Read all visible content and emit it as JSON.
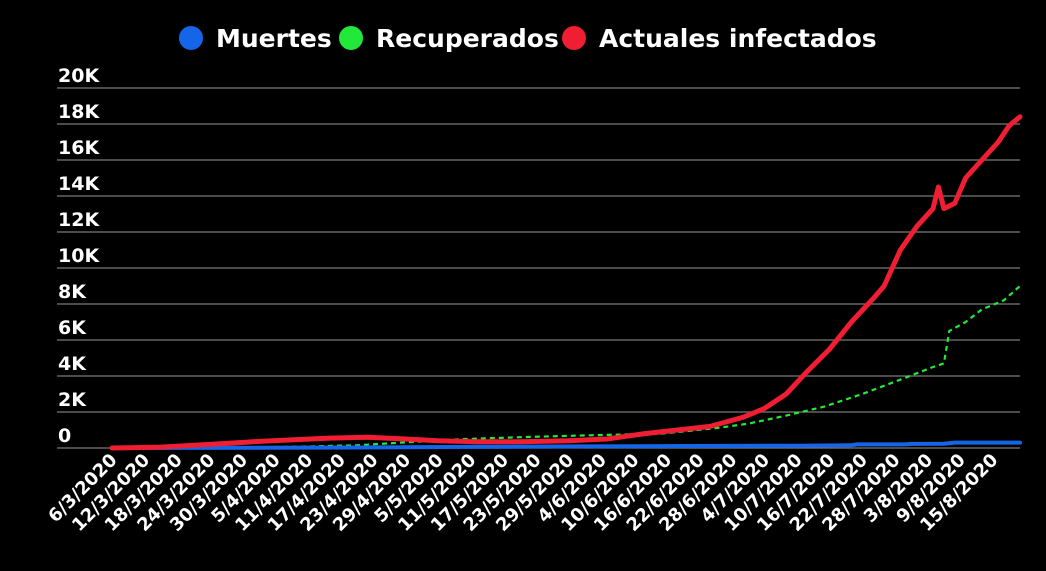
{
  "chart_data": {
    "type": "line",
    "title": "",
    "xlabel": "",
    "ylabel": "",
    "ylim": [
      0,
      20000
    ],
    "yticks": [
      0,
      2000,
      4000,
      6000,
      8000,
      10000,
      12000,
      14000,
      16000,
      18000,
      20000
    ],
    "ytick_labels": [
      "0",
      "2K",
      "4K",
      "6K",
      "8K",
      "10K",
      "12K",
      "14K",
      "16K",
      "18K",
      "20K"
    ],
    "x_start": "6/3/2020",
    "x_end": "20/8/2020",
    "xtick_labels": [
      "6/3/2020",
      "12/3/2020",
      "18/3/2020",
      "24/3/2020",
      "30/3/2020",
      "5/4/2020",
      "11/4/2020",
      "17/4/2020",
      "23/4/2020",
      "29/4/2020",
      "5/5/2020",
      "11/5/2020",
      "17/5/2020",
      "23/5/2020",
      "29/5/2020",
      "4/6/2020",
      "10/6/2020",
      "16/6/2020",
      "22/6/2020",
      "28/6/2020",
      "4/7/2020",
      "10/7/2020",
      "16/7/2020",
      "22/7/2020",
      "28/7/2020",
      "3/8/2020",
      "9/8/2020",
      "15/8/2020"
    ],
    "grid": true,
    "legend_position": "top-center",
    "series": [
      {
        "name": "Muertes",
        "color": "#1565e8",
        "style": "solid",
        "points": [
          [
            "6/3/2020",
            0
          ],
          [
            "1/4/2020",
            10
          ],
          [
            "20/4/2020",
            30
          ],
          [
            "10/5/2020",
            60
          ],
          [
            "1/6/2020",
            90
          ],
          [
            "20/6/2020",
            110
          ],
          [
            "10/7/2020",
            130
          ],
          [
            "20/7/2020",
            150
          ],
          [
            "21/7/2020",
            200
          ],
          [
            "30/7/2020",
            200
          ],
          [
            "31/7/2020",
            230
          ],
          [
            "6/8/2020",
            240
          ],
          [
            "8/8/2020",
            300
          ],
          [
            "20/8/2020",
            300
          ]
        ]
      },
      {
        "name": "Recuperados",
        "color": "#22e83a",
        "style": "dashed",
        "points": [
          [
            "6/3/2020",
            0
          ],
          [
            "20/3/2020",
            10
          ],
          [
            "1/4/2020",
            40
          ],
          [
            "10/4/2020",
            80
          ],
          [
            "20/4/2020",
            150
          ],
          [
            "1/5/2020",
            350
          ],
          [
            "10/5/2020",
            500
          ],
          [
            "20/5/2020",
            600
          ],
          [
            "1/6/2020",
            700
          ],
          [
            "15/6/2020",
            800
          ],
          [
            "25/6/2020",
            1100
          ],
          [
            "1/7/2020",
            1350
          ],
          [
            "8/7/2020",
            1800
          ],
          [
            "15/7/2020",
            2300
          ],
          [
            "22/7/2020",
            3000
          ],
          [
            "29/7/2020",
            3800
          ],
          [
            "4/8/2020",
            4500
          ],
          [
            "6/8/2020",
            4700
          ],
          [
            "7/8/2020",
            6500
          ],
          [
            "10/8/2020",
            7000
          ],
          [
            "13/8/2020",
            7700
          ],
          [
            "17/8/2020",
            8200
          ],
          [
            "20/8/2020",
            9000
          ]
        ]
      },
      {
        "name": "Actuales infectados",
        "color": "#f01e32",
        "style": "solid",
        "points": [
          [
            "6/3/2020",
            0
          ],
          [
            "15/3/2020",
            50
          ],
          [
            "24/3/2020",
            200
          ],
          [
            "1/4/2020",
            350
          ],
          [
            "8/4/2020",
            450
          ],
          [
            "15/4/2020",
            550
          ],
          [
            "22/4/2020",
            600
          ],
          [
            "29/4/2020",
            500
          ],
          [
            "5/5/2020",
            400
          ],
          [
            "12/5/2020",
            350
          ],
          [
            "20/5/2020",
            350
          ],
          [
            "29/5/2020",
            400
          ],
          [
            "5/6/2020",
            500
          ],
          [
            "12/6/2020",
            800
          ],
          [
            "18/6/2020",
            1000
          ],
          [
            "24/6/2020",
            1200
          ],
          [
            "30/6/2020",
            1700
          ],
          [
            "4/7/2020",
            2200
          ],
          [
            "8/7/2020",
            3000
          ],
          [
            "12/7/2020",
            4300
          ],
          [
            "16/7/2020",
            5500
          ],
          [
            "20/7/2020",
            7000
          ],
          [
            "24/7/2020",
            8300
          ],
          [
            "26/7/2020",
            9000
          ],
          [
            "29/7/2020",
            11000
          ],
          [
            "1/8/2020",
            12300
          ],
          [
            "4/8/2020",
            13300
          ],
          [
            "5/8/2020",
            14500
          ],
          [
            "6/8/2020",
            13300
          ],
          [
            "8/8/2020",
            13600
          ],
          [
            "10/8/2020",
            15000
          ],
          [
            "13/8/2020",
            16000
          ],
          [
            "16/8/2020",
            17000
          ],
          [
            "18/8/2020",
            17900
          ],
          [
            "20/8/2020",
            18400
          ]
        ]
      }
    ]
  }
}
